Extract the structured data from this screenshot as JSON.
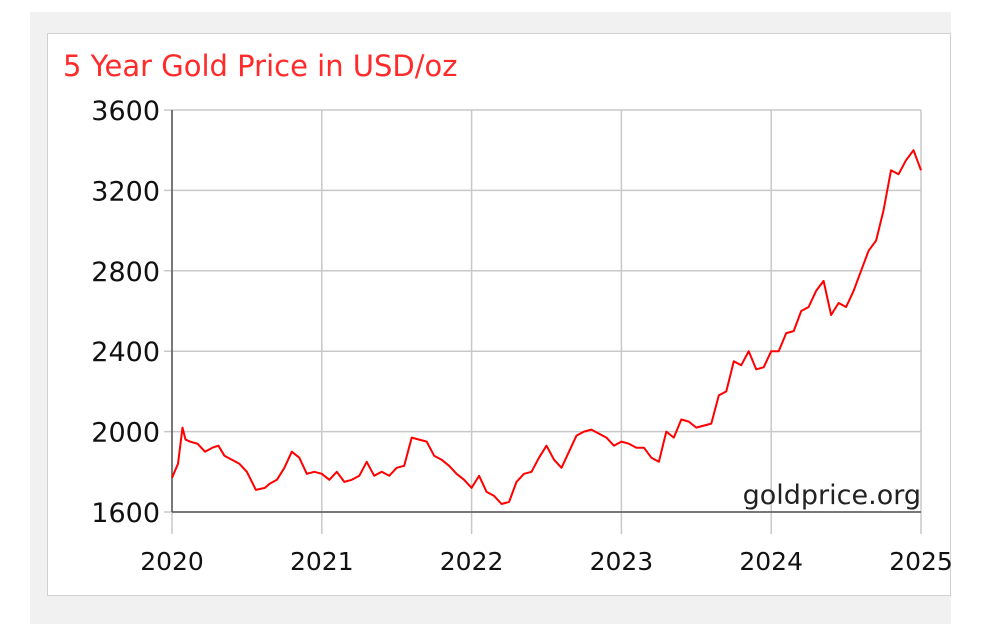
{
  "chart_data": {
    "type": "line",
    "title": "5 Year Gold Price in USD/oz",
    "watermark": "goldprice.org",
    "xlabel": "",
    "ylabel": "",
    "x_ticks": [
      "2020",
      "2021",
      "2022",
      "2023",
      "2024",
      "2025"
    ],
    "y_ticks": [
      1600,
      2000,
      2400,
      2800,
      3200,
      3600
    ],
    "xlim": [
      2020,
      2025
    ],
    "ylim": [
      1600,
      3600
    ],
    "grid": true,
    "colors": {
      "title": "#ff2a2a",
      "line": "#ff0000",
      "grid": "#c8c8c8",
      "axis": "#555555"
    },
    "series": [
      {
        "x": [
          2020.0,
          2020.04,
          2020.07,
          2020.09,
          2020.12,
          2020.17,
          2020.22,
          2020.27,
          2020.31,
          2020.35,
          2020.4,
          2020.45,
          2020.5,
          2020.56,
          2020.62,
          2020.65,
          2020.7,
          2020.75,
          2020.8,
          2020.85,
          2020.9,
          2020.95,
          2021.0,
          2021.05,
          2021.1,
          2021.15,
          2021.2,
          2021.25,
          2021.3,
          2021.35,
          2021.4,
          2021.45,
          2021.5,
          2021.55,
          2021.6,
          2021.65,
          2021.7,
          2021.75,
          2021.8,
          2021.85,
          2021.9,
          2021.95,
          2022.0,
          2022.05,
          2022.1,
          2022.15,
          2022.2,
          2022.25,
          2022.3,
          2022.35,
          2022.4,
          2022.45,
          2022.5,
          2022.55,
          2022.6,
          2022.65,
          2022.7,
          2022.75,
          2022.8,
          2022.85,
          2022.9,
          2022.95,
          2023.0,
          2023.05,
          2023.1,
          2023.15,
          2023.2,
          2023.25,
          2023.3,
          2023.35,
          2023.4,
          2023.45,
          2023.5,
          2023.55,
          2023.6,
          2023.65,
          2023.7,
          2023.75,
          2023.8,
          2023.85,
          2023.9,
          2023.95,
          2024.0,
          2024.05,
          2024.1,
          2024.15,
          2024.2,
          2024.25,
          2024.3,
          2024.35,
          2024.4,
          2024.45,
          2024.5,
          2024.55,
          2024.6,
          2024.65,
          2024.7,
          2024.75,
          2024.8,
          2024.85,
          2024.9,
          2024.95,
          2025.0
        ],
        "values": [
          1770,
          1840,
          2020,
          1960,
          1950,
          1940,
          1900,
          1920,
          1930,
          1880,
          1860,
          1840,
          1800,
          1710,
          1720,
          1740,
          1760,
          1820,
          1900,
          1870,
          1790,
          1800,
          1790,
          1760,
          1800,
          1750,
          1760,
          1780,
          1850,
          1780,
          1800,
          1780,
          1820,
          1830,
          1970,
          1960,
          1950,
          1880,
          1860,
          1830,
          1790,
          1760,
          1720,
          1780,
          1700,
          1680,
          1640,
          1650,
          1750,
          1790,
          1800,
          1870,
          1930,
          1860,
          1820,
          1900,
          1980,
          2000,
          2010,
          1990,
          1970,
          1930,
          1950,
          1940,
          1920,
          1920,
          1870,
          1850,
          2000,
          1970,
          2060,
          2050,
          2020,
          2030,
          2040,
          2180,
          2200,
          2350,
          2330,
          2400,
          2310,
          2320,
          2400,
          2400,
          2490,
          2500,
          2600,
          2620,
          2700,
          2750,
          2580,
          2640,
          2620,
          2700,
          2800,
          2900,
          2950,
          3100,
          3300,
          3280,
          3350,
          3400,
          3300
        ]
      }
    ]
  }
}
